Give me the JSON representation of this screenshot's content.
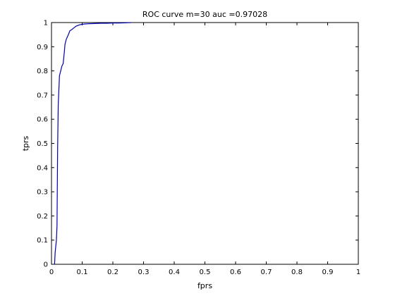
{
  "chart_data": {
    "type": "line",
    "title": "ROC curve m=30 auc =0.97028",
    "xlabel": "fprs",
    "ylabel": "tprs",
    "xlim": [
      0,
      1
    ],
    "ylim": [
      0,
      1
    ],
    "xticks": [
      0,
      0.1,
      0.2,
      0.3,
      0.4,
      0.5,
      0.6,
      0.7,
      0.8,
      0.9,
      1
    ],
    "xtick_labels": [
      "0",
      "0.1",
      "0.2",
      "0.3",
      "0.4",
      "0.5",
      "0.6",
      "0.7",
      "0.8",
      "0.9",
      "1"
    ],
    "yticks": [
      0,
      0.1,
      0.2,
      0.3,
      0.4,
      0.5,
      0.6,
      0.7,
      0.8,
      0.9,
      1
    ],
    "ytick_labels": [
      "0",
      "0.1",
      "0.2",
      "0.3",
      "0.4",
      "0.5",
      "0.6",
      "0.7",
      "0.8",
      "0.9",
      "1"
    ],
    "grid": false,
    "series": [
      {
        "color": "#0000ad",
        "x": [
          0.01,
          0.012,
          0.016,
          0.018,
          0.02,
          0.022,
          0.024,
          0.026,
          0.03,
          0.034,
          0.038,
          0.042,
          0.044,
          0.048,
          0.055,
          0.06,
          0.065,
          0.07,
          0.08,
          0.09,
          0.1,
          0.12,
          0.14,
          0.16,
          0.18,
          0.2,
          0.22,
          0.24,
          0.26
        ],
        "y": [
          0.0,
          0.05,
          0.1,
          0.16,
          0.48,
          0.66,
          0.72,
          0.78,
          0.8,
          0.82,
          0.83,
          0.88,
          0.91,
          0.93,
          0.95,
          0.966,
          0.97,
          0.975,
          0.985,
          0.99,
          0.993,
          0.995,
          0.996,
          0.997,
          0.997,
          0.998,
          0.998,
          0.999,
          1.0
        ]
      }
    ]
  }
}
